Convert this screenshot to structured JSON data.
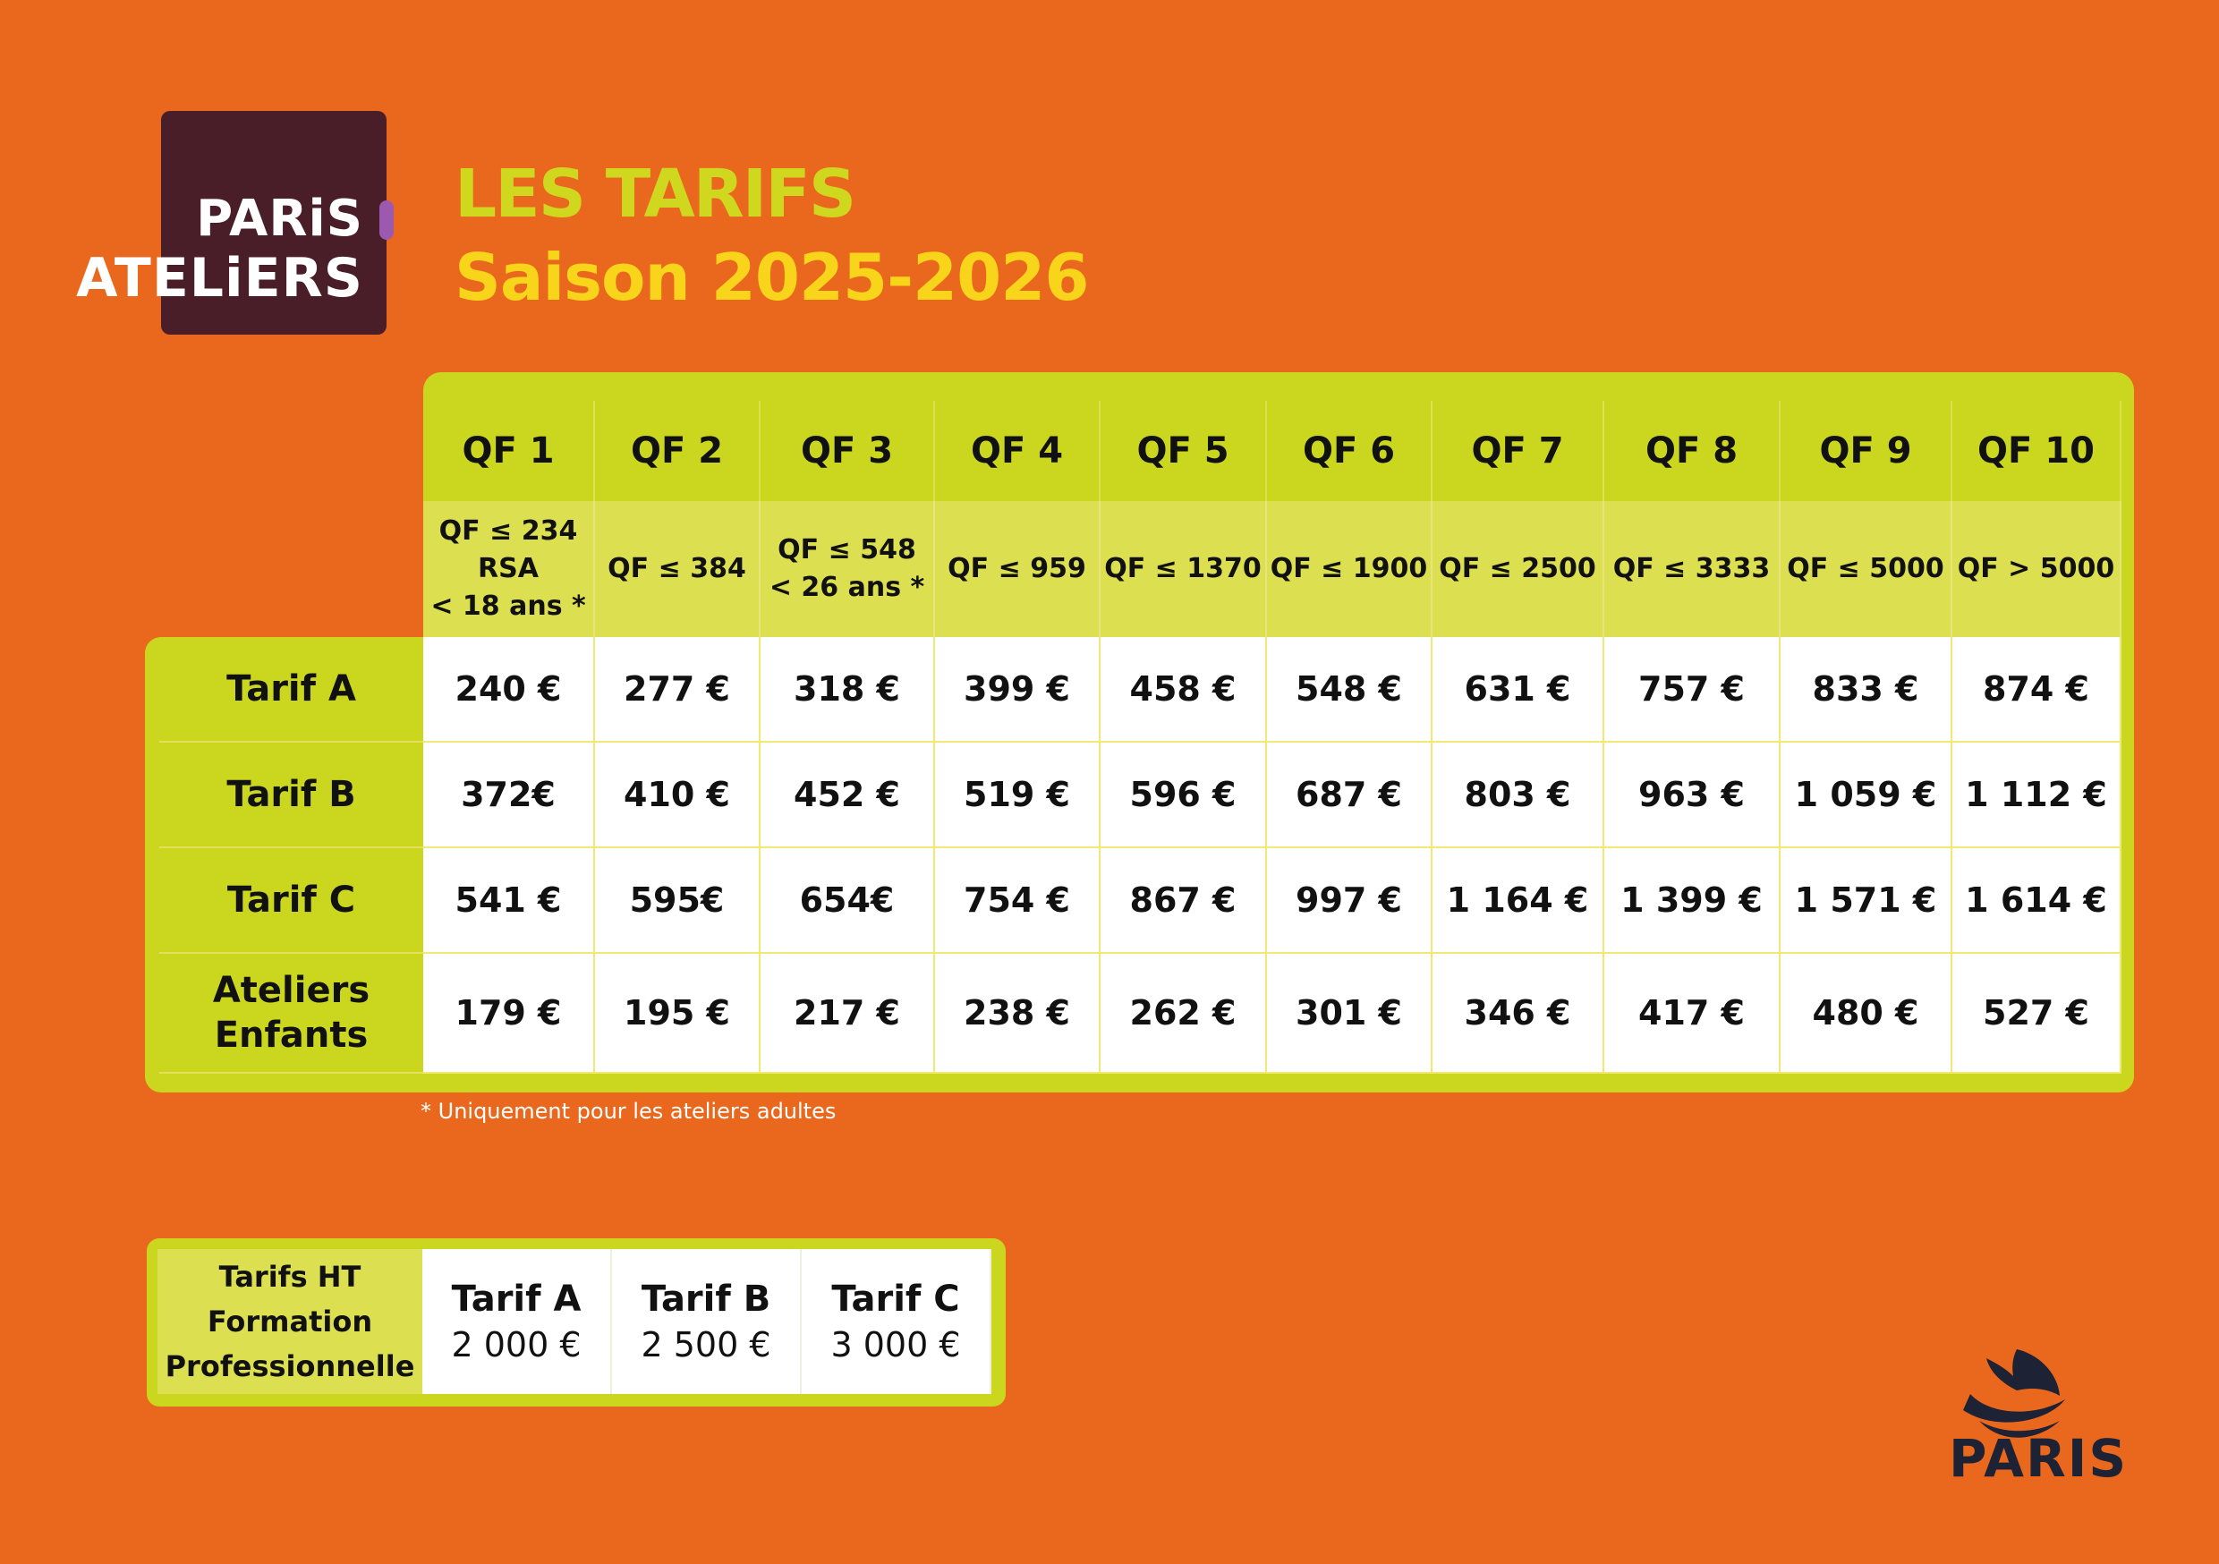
{
  "logo": {
    "line1": "PARiS",
    "line2": "ATELiERS"
  },
  "title": "LES TARIFS",
  "subtitle": "Saison 2025-2026",
  "table": {
    "columns": [
      {
        "header": "QF 1",
        "range": "QF ≤ 234\nRSA\n< 18 ans *"
      },
      {
        "header": "QF 2",
        "range": "QF ≤ 384"
      },
      {
        "header": "QF 3",
        "range": "QF ≤ 548\n< 26 ans *"
      },
      {
        "header": "QF 4",
        "range": "QF ≤ 959"
      },
      {
        "header": "QF 5",
        "range": "QF ≤ 1370"
      },
      {
        "header": "QF 6",
        "range": "QF ≤ 1900"
      },
      {
        "header": "QF 7",
        "range": "QF ≤ 2500"
      },
      {
        "header": "QF 8",
        "range": "QF ≤ 3333"
      },
      {
        "header": "QF 9",
        "range": "QF ≤ 5000"
      },
      {
        "header": "QF 10",
        "range": "QF > 5000"
      }
    ],
    "rows": [
      {
        "label": "Tarif A",
        "values": [
          "240 €",
          "277 €",
          "318 €",
          "399 €",
          "458 €",
          "548 €",
          "631 €",
          "757 €",
          "833 €",
          "874 €"
        ]
      },
      {
        "label": "Tarif B",
        "values": [
          "372€",
          "410 €",
          "452 €",
          "519 €",
          "596 €",
          "687 €",
          "803 €",
          "963 €",
          "1 059 €",
          "1 112 €"
        ]
      },
      {
        "label": "Tarif C",
        "values": [
          "541 €",
          "595€",
          "654€",
          "754 €",
          "867 €",
          "997 €",
          "1 164 €",
          "1 399 €",
          "1 571 €",
          "1 614 €"
        ]
      },
      {
        "label": "Ateliers\nEnfants",
        "values": [
          "179 €",
          "195 €",
          "217 €",
          "238 €",
          "262 €",
          "301 €",
          "346 €",
          "417 €",
          "480 €",
          "527 €"
        ]
      }
    ]
  },
  "footnote": "* Uniquement pour les ateliers adultes",
  "pro": {
    "label": "Tarifs HT\nFormation\nProfessionnelle",
    "items": [
      {
        "label": "Tarif A",
        "price": "2 000 €"
      },
      {
        "label": "Tarif B",
        "price": "2 500 €"
      },
      {
        "label": "Tarif C",
        "price": "3 000 €"
      }
    ]
  },
  "brand": "PARIS",
  "colors": {
    "background": "#EA681D",
    "green": "#CBD71E",
    "title": "#CFD71E",
    "subtitle": "#F8D41A",
    "logo": "#4A1E28"
  }
}
